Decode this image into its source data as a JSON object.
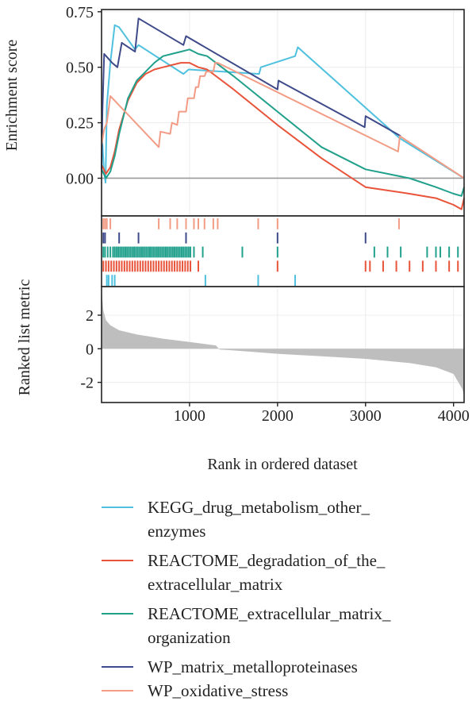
{
  "chart_data": {
    "type": "line",
    "xlabel": "Rank in ordered dataset",
    "xlim": [
      0,
      4120
    ],
    "x_ticks": [
      "1000",
      "2000",
      "3000",
      "4000"
    ],
    "x_tick_values": [
      1000,
      2000,
      3000,
      4000
    ],
    "grid": true,
    "legend_position": "bottom",
    "enrichment_panel": {
      "ylabel": "Enrichment score",
      "ylim": [
        -0.17,
        0.76
      ],
      "y_ticks": [
        "0.75",
        "0.50",
        "0.25",
        "0.00"
      ],
      "y_tick_values": [
        0.75,
        0.5,
        0.25,
        0.0
      ],
      "series": [
        {
          "name": "KEGG_drug_metabolism_other_enzymes",
          "color": "#4FC1DF",
          "x": [
            0,
            25,
            45,
            60,
            100,
            150,
            200,
            380,
            420,
            930,
            990,
            1790,
            1810,
            2200,
            2230,
            3390,
            4120
          ],
          "y": [
            0.22,
            0.05,
            -0.02,
            0.33,
            0.52,
            0.69,
            0.68,
            0.58,
            0.6,
            0.47,
            0.49,
            0.47,
            0.5,
            0.55,
            0.59,
            0.18,
            0.0
          ]
        },
        {
          "name": "REACTOME_degradation_of_the_extracellular_matrix",
          "color": "#E8533A",
          "x": [
            0,
            50,
            100,
            150,
            200,
            300,
            400,
            500,
            600,
            700,
            800,
            900,
            1000,
            1100,
            1200,
            1500,
            2000,
            2500,
            3000,
            3500,
            3800,
            4000,
            4090,
            4120
          ],
          "y": [
            0.06,
            0.02,
            0.05,
            0.12,
            0.22,
            0.35,
            0.43,
            0.47,
            0.49,
            0.5,
            0.51,
            0.52,
            0.52,
            0.5,
            0.49,
            0.4,
            0.24,
            0.09,
            -0.04,
            -0.07,
            -0.09,
            -0.12,
            -0.14,
            -0.09
          ]
        },
        {
          "name": "REACTOME_extracellular_matrix_organization",
          "color": "#21A08C",
          "x": [
            0,
            50,
            100,
            150,
            200,
            300,
            400,
            500,
            600,
            700,
            800,
            900,
            1000,
            1100,
            1200,
            1500,
            2000,
            2500,
            3000,
            3500,
            3800,
            4000,
            4090,
            4120
          ],
          "y": [
            0.04,
            0.0,
            0.03,
            0.1,
            0.2,
            0.36,
            0.44,
            0.48,
            0.52,
            0.55,
            0.56,
            0.57,
            0.58,
            0.56,
            0.55,
            0.46,
            0.3,
            0.14,
            0.04,
            0.0,
            -0.04,
            -0.07,
            -0.08,
            -0.04
          ]
        },
        {
          "name": "WP_matrix_metalloproteinases",
          "color": "#3E4A89",
          "x": [
            0,
            10,
            30,
            120,
            180,
            230,
            380,
            420,
            930,
            960,
            2000,
            2010,
            2990,
            3000,
            3400
          ],
          "y": [
            0.04,
            0.3,
            0.56,
            0.52,
            0.5,
            0.61,
            0.57,
            0.72,
            0.6,
            0.64,
            0.4,
            0.44,
            0.23,
            0.28,
            0.19
          ]
        },
        {
          "name": "WP_oxidative_stress",
          "color": "#F29C86",
          "x": [
            0,
            30,
            60,
            100,
            650,
            670,
            780,
            800,
            860,
            880,
            960,
            980,
            1050,
            1070,
            1100,
            1120,
            1170,
            1190,
            1270,
            1290,
            1320,
            3370,
            3390,
            4120
          ],
          "y": [
            0.15,
            0.22,
            0.25,
            0.37,
            0.14,
            0.21,
            0.2,
            0.25,
            0.24,
            0.3,
            0.3,
            0.36,
            0.36,
            0.41,
            0.41,
            0.46,
            0.46,
            0.48,
            0.48,
            0.52,
            0.52,
            0.12,
            0.19,
            0.0
          ]
        }
      ]
    },
    "hit_panel": {
      "rows": [
        {
          "name": "WP_oxidative_stress",
          "color": "#F29C86",
          "positions": [
            20,
            40,
            60,
            100,
            650,
            780,
            860,
            960,
            1050,
            1100,
            1170,
            1270,
            1320,
            1780,
            2000,
            3380
          ]
        },
        {
          "name": "WP_matrix_metalloproteinases",
          "color": "#3E4A89",
          "positions": [
            20,
            40,
            200,
            420,
            960,
            2000,
            3000
          ]
        },
        {
          "name": "REACTOME_extracellular_matrix_organization",
          "color": "#21A08C",
          "positions": [
            20,
            40,
            70,
            100,
            130,
            150,
            170,
            190,
            210,
            230,
            250,
            270,
            290,
            310,
            330,
            350,
            370,
            390,
            410,
            430,
            450,
            470,
            490,
            510,
            530,
            550,
            570,
            590,
            610,
            630,
            650,
            670,
            690,
            710,
            730,
            750,
            770,
            790,
            810,
            830,
            850,
            870,
            890,
            910,
            930,
            950,
            970,
            990,
            1010,
            1050,
            1150,
            1600,
            2000,
            3100,
            3250,
            3400,
            3700,
            3800,
            3850,
            3950,
            4050
          ]
        },
        {
          "name": "REACTOME_degradation_of_the_extracellular_matrix",
          "color": "#E8533A",
          "positions": [
            20,
            50,
            80,
            110,
            140,
            170,
            200,
            230,
            260,
            290,
            320,
            350,
            380,
            410,
            440,
            470,
            500,
            530,
            560,
            590,
            620,
            650,
            680,
            710,
            740,
            770,
            800,
            830,
            860,
            890,
            920,
            950,
            980,
            1010,
            1100,
            2000,
            3000,
            3050,
            3200,
            3350,
            3500,
            3650,
            3800,
            3950,
            4050
          ]
        },
        {
          "name": "KEGG_drug_metabolism_other_enzymes",
          "color": "#4FC1DF",
          "positions": [
            60,
            80,
            120,
            150,
            1180,
            1780,
            2200
          ]
        }
      ]
    },
    "metric_panel": {
      "ylabel": "Ranked list metric",
      "ylim": [
        -3.2,
        3.7
      ],
      "y_ticks": [
        "2",
        "0",
        "-2"
      ],
      "y_tick_values": [
        2,
        0,
        -2
      ],
      "fill_color": "#BEBEBE",
      "x": [
        0,
        20,
        50,
        100,
        200,
        400,
        700,
        1000,
        1300,
        1340,
        1500,
        2000,
        2500,
        3000,
        3500,
        3800,
        4000,
        4100,
        4120
      ],
      "y": [
        3.5,
        2.3,
        1.7,
        1.4,
        1.1,
        0.85,
        0.6,
        0.4,
        0.2,
        -0.05,
        -0.1,
        -0.3,
        -0.45,
        -0.6,
        -0.85,
        -1.1,
        -1.5,
        -2.4,
        -2.8
      ]
    },
    "legend": [
      {
        "color": "#4FC1DF",
        "lines": [
          "KEGG_drug_metabolism_other_",
          "enzymes"
        ]
      },
      {
        "color": "#E8533A",
        "lines": [
          "REACTOME_degradation_of_the_",
          "extracellular_matrix"
        ]
      },
      {
        "color": "#21A08C",
        "lines": [
          "REACTOME_extracellular_matrix_",
          "organization"
        ]
      },
      {
        "color": "#3E4A89",
        "lines": [
          "WP_matrix_metalloproteinases"
        ]
      },
      {
        "color": "#F29C86",
        "lines": [
          "WP_oxidative_stress"
        ]
      }
    ]
  }
}
